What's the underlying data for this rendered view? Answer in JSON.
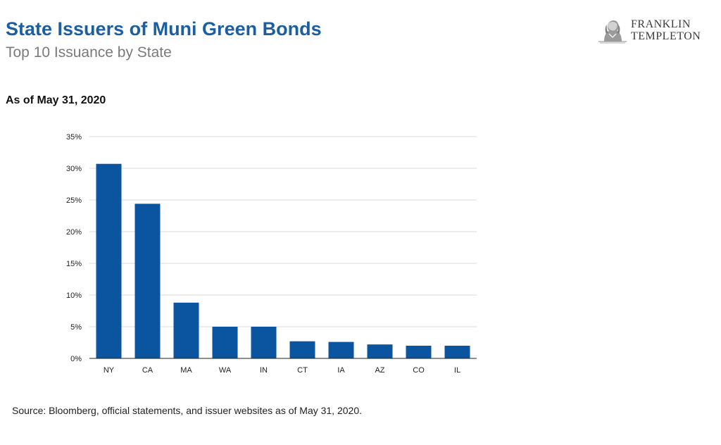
{
  "header": {
    "title": "State Issuers of Muni Green Bonds",
    "subtitle": "Top 10 Issuance by State",
    "as_of": "As of May 31, 2020"
  },
  "logo": {
    "line1": "FRANKLIN",
    "line2": "TEMPLETON",
    "icon": "benjamin-franklin-portrait-icon"
  },
  "footer": {
    "source": "Source: Bloomberg, official statements, and issuer websites as of May 31, 2020."
  },
  "colors": {
    "title": "#1b5ea1",
    "bar": "#0b55a0",
    "gridline": "#d9d9d9"
  },
  "chart_data": {
    "type": "bar",
    "title": "",
    "xlabel": "",
    "ylabel": "",
    "categories": [
      "NY",
      "CA",
      "MA",
      "WA",
      "IN",
      "CT",
      "IA",
      "AZ",
      "CO",
      "IL"
    ],
    "values": [
      30.7,
      24.4,
      8.8,
      5.0,
      5.0,
      2.7,
      2.6,
      2.2,
      2.0,
      2.0
    ],
    "y_unit": "%",
    "ylim": [
      0,
      35
    ],
    "y_ticks": [
      0,
      5,
      10,
      15,
      20,
      25,
      30,
      35
    ],
    "y_tick_labels": [
      "0%",
      "5%",
      "10%",
      "15%",
      "20%",
      "25%",
      "30%",
      "35%"
    ],
    "grid": true,
    "legend": "none"
  }
}
